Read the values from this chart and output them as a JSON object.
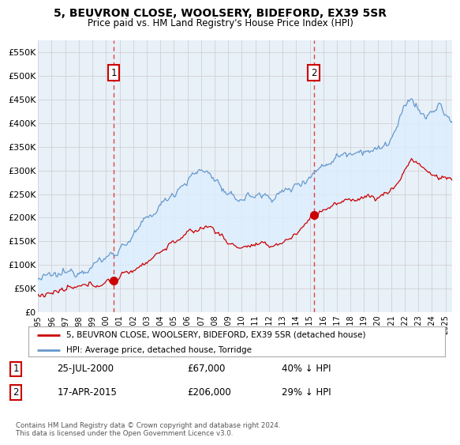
{
  "title": "5, BEUVRON CLOSE, WOOLSERY, BIDEFORD, EX39 5SR",
  "subtitle": "Price paid vs. HM Land Registry's House Price Index (HPI)",
  "legend_label_red": "5, BEUVRON CLOSE, WOOLSERY, BIDEFORD, EX39 5SR (detached house)",
  "legend_label_blue": "HPI: Average price, detached house, Torridge",
  "annotation1_date": "25-JUL-2000",
  "annotation1_price": "£67,000",
  "annotation1_hpi": "40% ↓ HPI",
  "annotation2_date": "17-APR-2015",
  "annotation2_price": "£206,000",
  "annotation2_hpi": "29% ↓ HPI",
  "footer": "Contains HM Land Registry data © Crown copyright and database right 2024.\nThis data is licensed under the Open Government Licence v3.0.",
  "ylim": [
    0,
    575000
  ],
  "yticks": [
    0,
    50000,
    100000,
    150000,
    200000,
    250000,
    300000,
    350000,
    400000,
    450000,
    500000,
    550000
  ],
  "xlim_start": 1995.0,
  "xlim_end": 2025.5,
  "red_color": "#cc0000",
  "blue_color": "#6699cc",
  "blue_fill_color": "#ddeeff",
  "vline_color": "#dd4444",
  "sale1_x": 2000.57,
  "sale1_y": 67000,
  "sale2_x": 2015.29,
  "sale2_y": 206000,
  "background_color": "#ffffff",
  "grid_color": "#cccccc"
}
